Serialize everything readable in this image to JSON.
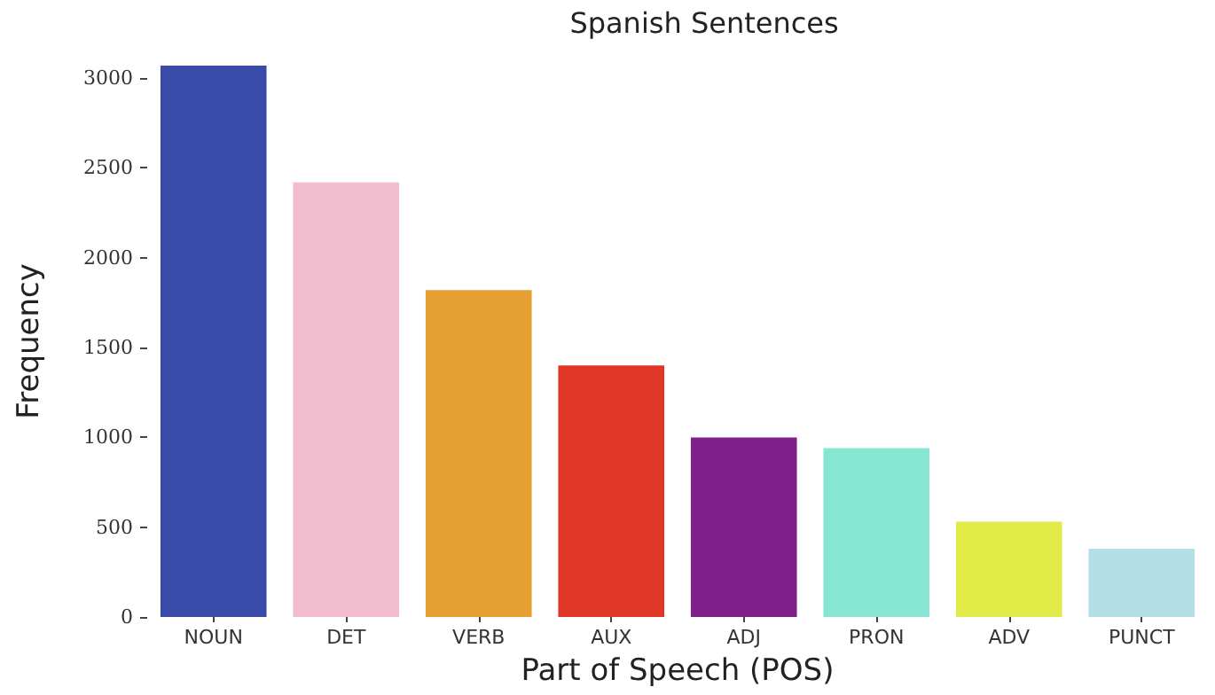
{
  "chart_data": {
    "type": "bar",
    "title": "Spanish Sentences",
    "xlabel": "Part of Speech (POS)",
    "ylabel": "Frequency",
    "categories": [
      "NOUN",
      "DET",
      "VERB",
      "AUX",
      "ADJ",
      "PRON",
      "ADV",
      "PUNCT"
    ],
    "values": [
      3070,
      2420,
      1820,
      1400,
      1000,
      940,
      530,
      380
    ],
    "colors": [
      "#3a4aa8",
      "#f1bccd",
      "#e6a033",
      "#e03628",
      "#801e8a",
      "#86e6d1",
      "#e0eb48",
      "#b3dfe6"
    ],
    "ylim": [
      0,
      3070
    ],
    "yticks": [
      0,
      500,
      1000,
      1500,
      2000,
      2500,
      3000
    ],
    "grid": false
  }
}
